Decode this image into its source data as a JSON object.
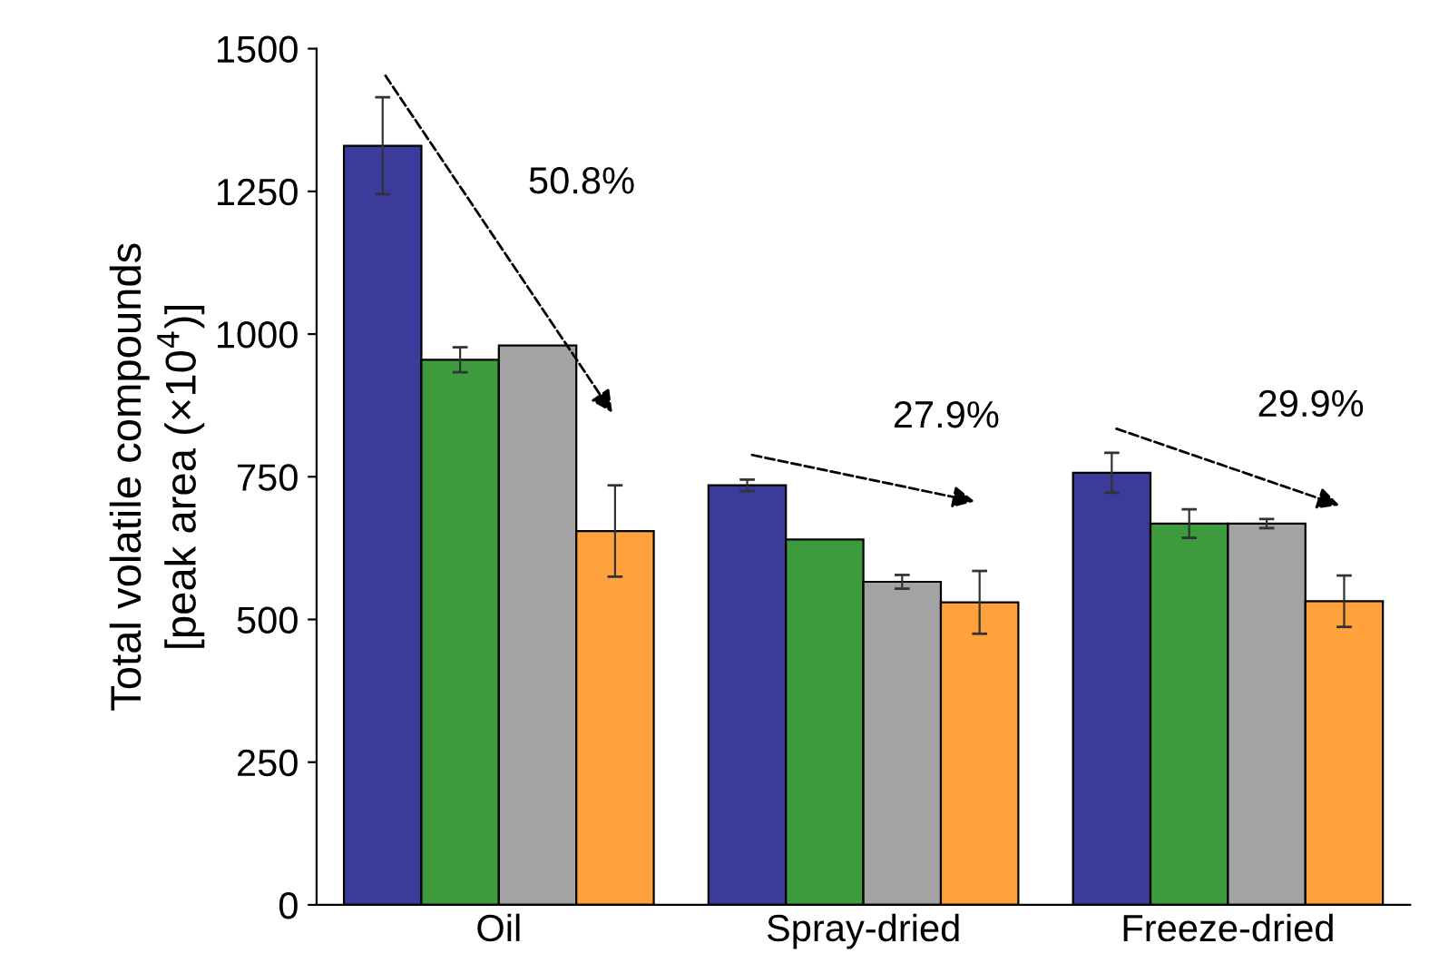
{
  "chart_data": {
    "type": "bar",
    "ylabel": "Total volatile compounds\n[peak area (×10$^{4}$)]",
    "categories": [
      "Oil",
      "Spray-dried",
      "Freeze-dried"
    ],
    "series": [
      {
        "color": "#3b3b9c",
        "values": [
          1330,
          735,
          757
        ],
        "errors": [
          85,
          10,
          35
        ]
      },
      {
        "color": "#3d9a3d",
        "values": [
          955,
          640,
          668
        ],
        "errors": [
          22,
          null,
          25
        ]
      },
      {
        "color": "#a3a3a3",
        "values": [
          980,
          566,
          668
        ],
        "errors": [
          null,
          12,
          8
        ]
      },
      {
        "color": "#ffa23e",
        "values": [
          655,
          530,
          532
        ],
        "errors": [
          80,
          55,
          45
        ]
      }
    ],
    "ylim": [
      0,
      1500
    ],
    "yticks": [
      0,
      250,
      500,
      750,
      1000,
      1250,
      1500
    ],
    "grid": false,
    "annotations": [
      "50.8%",
      "27.9%",
      "29.9%"
    ]
  }
}
